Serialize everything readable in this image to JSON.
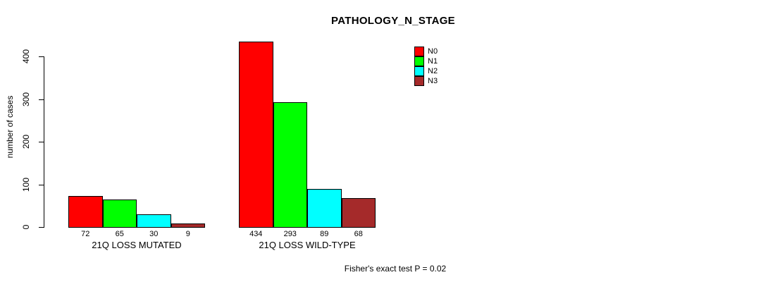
{
  "chart_data": {
    "type": "bar",
    "title": "PATHOLOGY_N_STAGE",
    "xlabel": "",
    "ylabel": "number of cases",
    "ylim": [
      0,
      400
    ],
    "yticks": [
      0,
      100,
      200,
      300,
      400
    ],
    "categories": [
      "21Q LOSS MUTATED",
      "21Q LOSS WILD-TYPE"
    ],
    "series": [
      {
        "name": "N0",
        "color": "#ff0000",
        "values": [
          72,
          434
        ]
      },
      {
        "name": "N1",
        "color": "#00ff00",
        "values": [
          65,
          293
        ]
      },
      {
        "name": "N2",
        "color": "#00ffff",
        "values": [
          30,
          89
        ]
      },
      {
        "name": "N3",
        "color": "#a52a2a",
        "values": [
          9,
          68
        ]
      }
    ],
    "bar_value_labels_shown": true,
    "legend": {
      "position": "top-right",
      "entries": [
        "N0",
        "N1",
        "N2",
        "N3"
      ]
    },
    "annotation": "Fisher's exact test P = 0.02",
    "grid": false,
    "background_color": "#ffffff"
  }
}
